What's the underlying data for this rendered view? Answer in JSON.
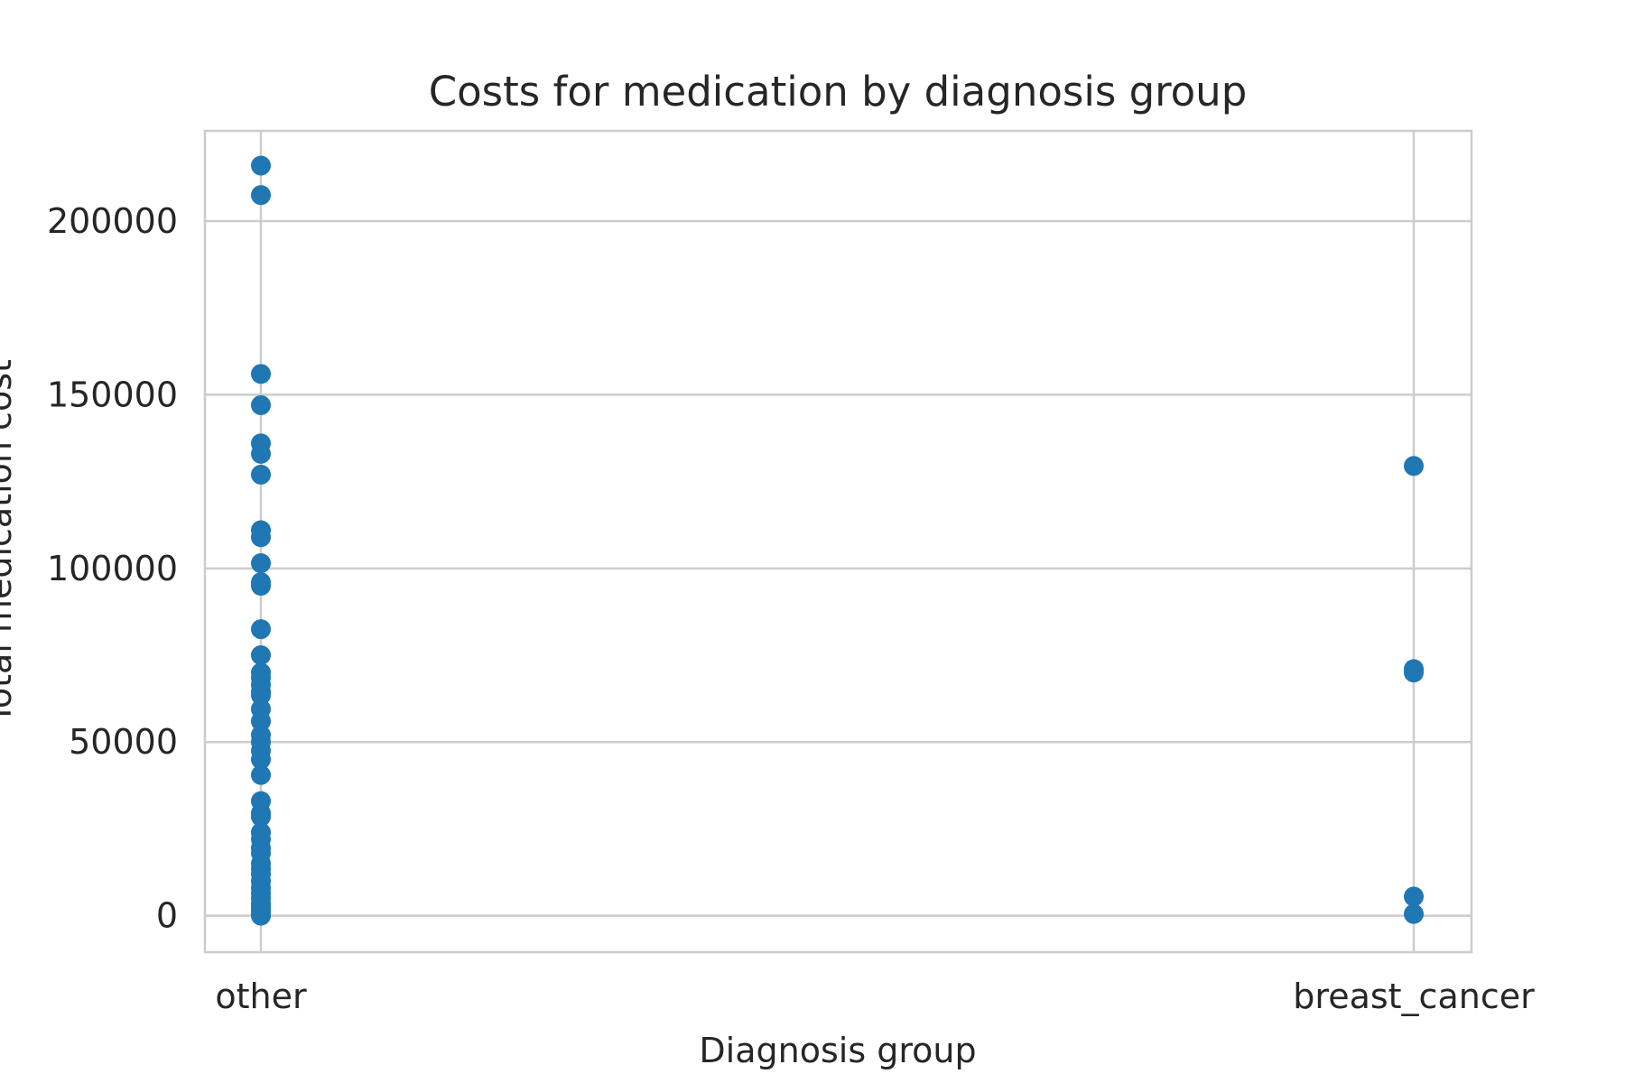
{
  "chart_data": {
    "type": "scatter",
    "title": "Costs for medication by diagnosis group",
    "xlabel": "Diagnosis group",
    "ylabel": "Total medication cost",
    "categories": [
      "other",
      "breast_cancer"
    ],
    "y_ticks": [
      0,
      50000,
      100000,
      150000,
      200000
    ],
    "ylim": [
      -10500,
      226000
    ],
    "grid": true,
    "color": "#1f77b4",
    "series": [
      {
        "category": "other",
        "values": [
          216000,
          207500,
          156000,
          147000,
          136000,
          133000,
          127000,
          111000,
          109000,
          101500,
          96000,
          95000,
          82500,
          75000,
          70000,
          68500,
          66500,
          64500,
          63500,
          59500,
          56000,
          52000,
          50000,
          47500,
          45000,
          40500,
          33000,
          29500,
          28500,
          24000,
          22000,
          19500,
          18000,
          15000,
          13500,
          12000,
          10000,
          8000,
          6500,
          5000,
          3500,
          2500,
          1500,
          500,
          0
        ]
      },
      {
        "category": "breast_cancer",
        "values": [
          129500,
          71000,
          70000,
          5500,
          500
        ]
      }
    ]
  }
}
